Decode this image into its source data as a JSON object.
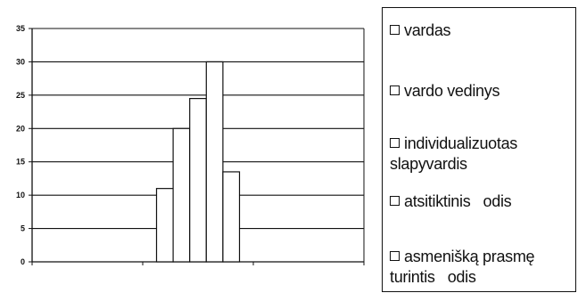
{
  "chart_data": {
    "type": "bar",
    "ylim": [
      0,
      35
    ],
    "yticks": [
      "0",
      "5",
      "10",
      "15",
      "20",
      "25",
      "30",
      "35"
    ],
    "grid": true,
    "legend_position": "right",
    "series": [
      {
        "name": "vardas",
        "value": 11
      },
      {
        "name": "vardo vedinys",
        "value": 20
      },
      {
        "name": "individualizuotas slapyvardis",
        "value": 24.5
      },
      {
        "name": "atsitiktinis   odis",
        "value": 30
      },
      {
        "name": "asmenišką prasmę turintis   odis",
        "value": 13.5
      }
    ],
    "bar_fill": "#ffffff",
    "bar_stroke": "#111111"
  },
  "legend": {
    "items": [
      {
        "text": "vardas"
      },
      {
        "text": "vardo vedinys"
      },
      {
        "text": "individualizuotas\nslapyvardis"
      },
      {
        "text": "atsitiktinis   odis"
      },
      {
        "text": "asmenišką prasmę\nturintis   odis"
      }
    ]
  }
}
